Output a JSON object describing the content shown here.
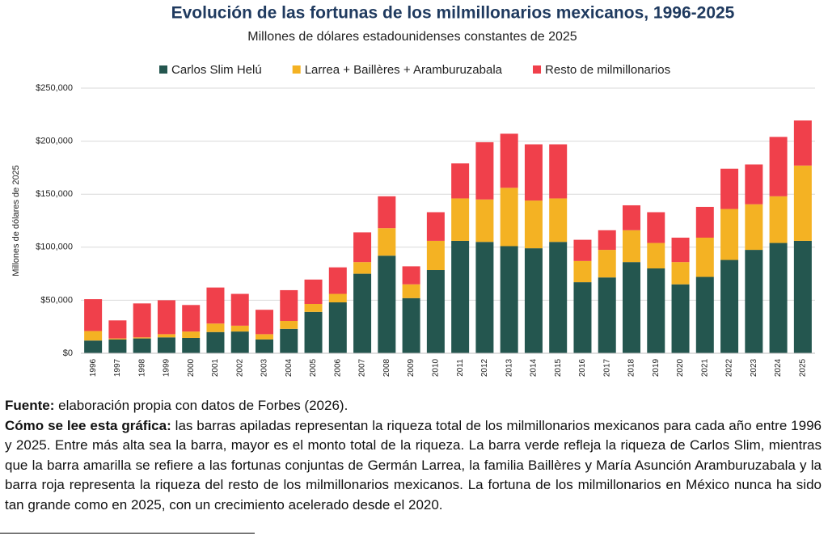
{
  "chart_data": {
    "type": "stacked-bar",
    "title": "Evolución de las fortunas de los milmillonarios mexicanos, 1996-2025",
    "subtitle": "Millones de dólares estadounidenses constantes de 2025",
    "y_label": "Millones de dólares de 2025",
    "categories": [
      "1996",
      "1997",
      "1998",
      "1999",
      "2000",
      "2001",
      "2002",
      "2003",
      "2004",
      "2005",
      "2006",
      "2007",
      "2008",
      "2009",
      "2010",
      "2011",
      "2012",
      "2013",
      "2014",
      "2015",
      "2016",
      "2017",
      "2018",
      "2019",
      "2020",
      "2021",
      "2022",
      "2023",
      "2024",
      "2025"
    ],
    "series": [
      {
        "name": "Carlos Slim Helú",
        "color": "#24564f",
        "values": [
          12000,
          13000,
          14000,
          15000,
          14500,
          20000,
          20500,
          13000,
          23000,
          39000,
          48000,
          75000,
          92000,
          52000,
          78500,
          106000,
          105000,
          101000,
          99000,
          105000,
          67000,
          71500,
          86000,
          80000,
          65000,
          72000,
          88000,
          97500,
          104000,
          106000
        ]
      },
      {
        "name": "Larrea + Baillères + Aramburuzabala",
        "color": "#f4b223",
        "values": [
          9000,
          1000,
          1000,
          3000,
          6000,
          8000,
          5500,
          5000,
          7500,
          7500,
          8000,
          11000,
          26000,
          13000,
          27500,
          40000,
          40000,
          55000,
          45000,
          41000,
          20000,
          26000,
          30000,
          24000,
          21000,
          37000,
          48000,
          43000,
          44000,
          71000
        ]
      },
      {
        "name": "Resto de milmillonarios",
        "color": "#f0404b",
        "values": [
          30000,
          17000,
          32000,
          32000,
          25000,
          34000,
          30000,
          23000,
          29000,
          23000,
          25000,
          28000,
          30000,
          17000,
          27000,
          33000,
          54000,
          51000,
          53000,
          51000,
          20000,
          18500,
          23500,
          29000,
          23000,
          29000,
          38000,
          37500,
          56000,
          42500
        ]
      }
    ],
    "ylim": [
      0,
      250000
    ],
    "yticks": [
      {
        "value": 0,
        "label": "$0"
      },
      {
        "value": 50000,
        "label": "$50,000"
      },
      {
        "value": 100000,
        "label": "$100,000"
      },
      {
        "value": 150000,
        "label": "$150,000"
      },
      {
        "value": 200000,
        "label": "$200,000"
      },
      {
        "value": 250000,
        "label": "$250,000"
      }
    ],
    "grid": true,
    "legend": "top"
  },
  "notes": {
    "source": {
      "label": "Fuente:",
      "text": "elaboración propia con datos de Forbes (2026)."
    },
    "reading": {
      "label": "Cómo se lee esta gráfica:",
      "text": "las barras apiladas representan la riqueza total de los milmillonarios mexicanos para cada año entre 1996 y 2025. Entre más alta sea la barra, mayor es el monto total de la riqueza. La barra verde refleja la riqueza de Carlos Slim, mientras que la barra amarilla se refiere a las fortunas conjuntas de Germán Larrea, la familia Baillères y María Asunción Aramburuzabala y la barra roja representa la riqueza del resto de los milmillonarios mexicanos. La fortuna de los milmillonarios en México nunca ha sido tan grande como en 2025, con un crecimiento acelerado desde el 2020."
    }
  }
}
